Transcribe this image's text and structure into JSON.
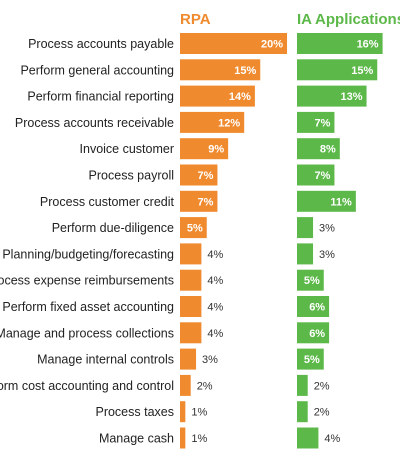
{
  "chart_data": [
    {
      "type": "bar",
      "orientation": "horizontal",
      "title": "RPA",
      "title_color": "#F08A2E",
      "bar_color": "#F08A2E",
      "categories": [
        "Process accounts payable",
        "Perform general accounting",
        "Perform financial reporting",
        "Process accounts receivable",
        "Invoice customer",
        "Process payroll",
        "Process customer credit",
        "Perform due-diligence",
        "Planning/budgeting/forecasting",
        "Process expense reimbursements",
        "Perform fixed asset accounting",
        "Manage and process collections",
        "Manage internal controls",
        "Perform cost accounting and control",
        "Process taxes",
        "Manage cash"
      ],
      "values": [
        20,
        15,
        14,
        12,
        9,
        7,
        7,
        5,
        4,
        4,
        4,
        4,
        3,
        2,
        1,
        1
      ],
      "data_labels": [
        "20%",
        "15%",
        "14%",
        "12%",
        "9%",
        "7%",
        "7%",
        "5%",
        "4%",
        "4%",
        "4%",
        "4%",
        "3%",
        "2%",
        "1%",
        "1%"
      ]
    },
    {
      "type": "bar",
      "orientation": "horizontal",
      "title": "IA Applications",
      "title_color": "#5CB848",
      "bar_color": "#5CB848",
      "categories": [
        "Process accounts payable",
        "Perform general accounting",
        "Perform financial reporting",
        "Process accounts receivable",
        "Invoice customer",
        "Process payroll",
        "Process customer credit",
        "Perform due-diligence",
        "Planning/budgeting/forecasting",
        "Process expense reimbursements",
        "Perform fixed asset accounting",
        "Manage and process collections",
        "Manage internal controls",
        "Perform cost accounting and control",
        "Process taxes",
        "Manage cash"
      ],
      "values": [
        16,
        15,
        13,
        7,
        8,
        7,
        11,
        3,
        3,
        5,
        6,
        6,
        5,
        2,
        2,
        4
      ],
      "data_labels": [
        "16%",
        "15%",
        "13%",
        "7%",
        "8%",
        "7%",
        "11%",
        "3%",
        "3%",
        "5%",
        "6%",
        "6%",
        "5%",
        "2%",
        "2%",
        "4%"
      ]
    }
  ]
}
